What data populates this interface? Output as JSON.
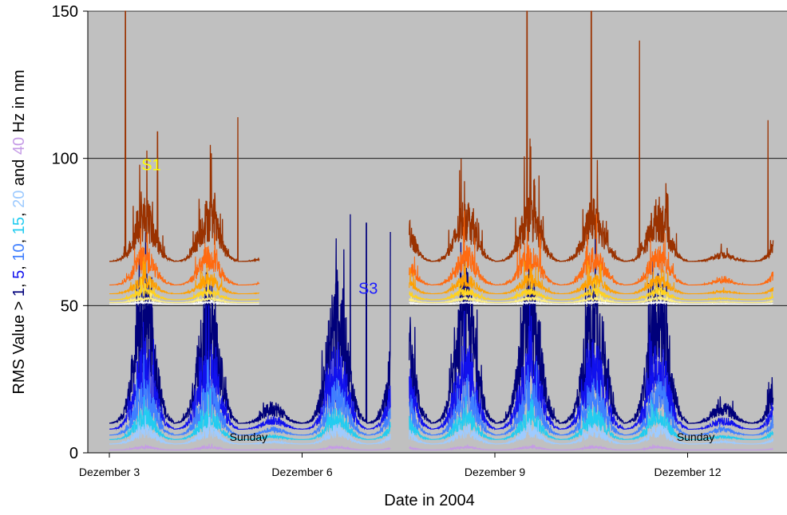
{
  "chart_data": {
    "type": "line",
    "xlabel": "Date in 2004",
    "ylabel_parts": [
      {
        "text": "RMS Value > ",
        "color": "#000000"
      },
      {
        "text": "1",
        "color": "#00007a"
      },
      {
        "text": ", ",
        "color": "#000000"
      },
      {
        "text": "5",
        "color": "#1111ee"
      },
      {
        "text": ", ",
        "color": "#000000"
      },
      {
        "text": "10",
        "color": "#3f7fff"
      },
      {
        "text": ", ",
        "color": "#000000"
      },
      {
        "text": "15",
        "color": "#22ccf0"
      },
      {
        "text": ", ",
        "color": "#000000"
      },
      {
        "text": "20",
        "color": "#9ecbff"
      },
      {
        "text": " and ",
        "color": "#000000"
      },
      {
        "text": "40",
        "color": "#c59be6"
      },
      {
        "text": " Hz in nm",
        "color": "#000000"
      }
    ],
    "ylim": [
      0,
      150
    ],
    "yticks": [
      0,
      50,
      100,
      150
    ],
    "ytick_labels": [
      "0",
      "50",
      "100",
      "150"
    ],
    "xlim": [
      "2004-12-03",
      "2004-12-13"
    ],
    "xticks": [
      "2004-12-03",
      "2004-12-06",
      "2004-12-09",
      "2004-12-12"
    ],
    "xtick_labels": [
      "Dezember 3",
      "Dezember 6",
      "Dezember 9",
      "Dezember 12"
    ],
    "grid": "horizontal",
    "background": "#c0c0c0",
    "note": "Upper panel (50–150) shows station S1 traces offset by +50 nm; lower panel (0–50) shows station S3 traces.",
    "annotations": [
      {
        "text": "S1",
        "x": "2004-12-03 12:00",
        "y": 96,
        "color": "#ffff00"
      },
      {
        "text": "S3",
        "x": "2004-12-06 21:00",
        "y": 54,
        "color": "#1a1aff"
      },
      {
        "text": "Sunday",
        "x": "2004-12-05 04:00",
        "y": 4,
        "color": "#000000"
      },
      {
        "text": "Sunday",
        "x": "2004-12-12 03:00",
        "y": 4,
        "color": "#000000"
      }
    ],
    "gap": [
      "2004-12-07 10:00",
      "2004-12-07 16:00"
    ],
    "s1_segments": [
      [
        "2004-12-03 00:00",
        "2004-12-05 08:00"
      ],
      [
        "2004-12-07 16:00",
        "2004-12-13 08:00"
      ]
    ],
    "s3_segments": [
      [
        "2004-12-03 00:00",
        "2004-12-05 08:00"
      ],
      [
        "2004-12-05 06:00",
        "2004-12-07 09:00"
      ],
      [
        "2004-12-07 16:00",
        "2004-12-13 08:00"
      ]
    ],
    "s1_series": [
      {
        "name": "1 Hz",
        "color": "#9a3200",
        "baseline": 65,
        "peak_values": [
          {
            "x": "2004-12-03 06:00",
            "y": 150
          },
          {
            "x": "2004-12-03 18:00",
            "y": 109
          },
          {
            "x": "2004-12-05 00:00",
            "y": 114
          },
          {
            "x": "2004-12-09 12:00",
            "y": 150
          },
          {
            "x": "2004-12-10 12:00",
            "y": 150
          },
          {
            "x": "2004-12-11 06:00",
            "y": 140
          },
          {
            "x": "2004-12-13 06:00",
            "y": 113
          }
        ]
      },
      {
        "name": "5 Hz",
        "color": "#ff6a10",
        "baseline": 57
      },
      {
        "name": "10 Hz",
        "color": "#ffa000",
        "baseline": 54
      },
      {
        "name": "15 Hz",
        "color": "#ffd21e",
        "baseline": 52
      },
      {
        "name": "20 Hz",
        "color": "#fff080",
        "baseline": 51
      },
      {
        "name": "40 Hz",
        "color": "#ffffff",
        "baseline": 50.5
      }
    ],
    "s3_series": [
      {
        "name": "1 Hz",
        "color": "#00007a",
        "baseline": 10,
        "peak_values": [
          {
            "x": "2004-12-06 18:00",
            "y": 81
          },
          {
            "x": "2004-12-07 00:00",
            "y": 78
          },
          {
            "x": "2004-12-07 09:00",
            "y": 75
          }
        ]
      },
      {
        "name": "5 Hz",
        "color": "#1111ee",
        "baseline": 8
      },
      {
        "name": "10 Hz",
        "color": "#3f7fff",
        "baseline": 6
      },
      {
        "name": "15 Hz",
        "color": "#22ccf0",
        "baseline": 4.5
      },
      {
        "name": "20 Hz",
        "color": "#9ecbff",
        "baseline": 3
      },
      {
        "name": "40 Hz",
        "color": "#c59be6",
        "baseline": 1
      }
    ]
  }
}
